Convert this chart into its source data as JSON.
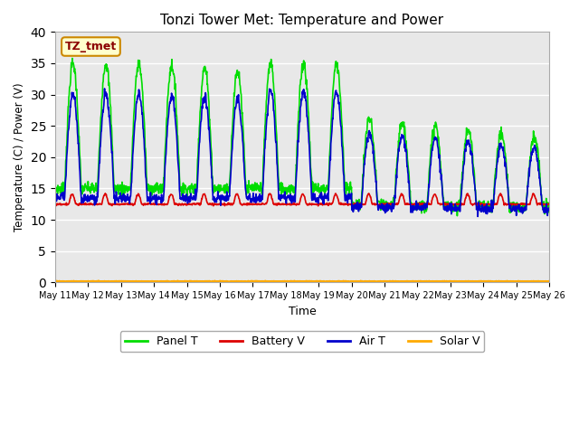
{
  "title": "Tonzi Tower Met: Temperature and Power",
  "xlabel": "Time",
  "ylabel": "Temperature (C) / Power (V)",
  "ylim": [
    0,
    40
  ],
  "yticks": [
    0,
    5,
    10,
    15,
    20,
    25,
    30,
    35,
    40
  ],
  "annotation_text": "TZ_tmet",
  "annotation_color": "#8b0000",
  "annotation_bg": "#ffffcc",
  "annotation_border": "#cc8800",
  "bg_color": "#e8e8e8",
  "panel_color": "#00dd00",
  "battery_color": "#dd0000",
  "air_color": "#0000cc",
  "solar_color": "#ffaa00",
  "legend_labels": [
    "Panel T",
    "Battery V",
    "Air T",
    "Solar V"
  ],
  "line_width": 1.2,
  "tick_labels": [
    "May 11",
    "May 12",
    "May 13",
    "May 14",
    "May 15",
    "May 16",
    "May 17",
    "May 18",
    "May 19",
    "May 20",
    "May 21",
    "May 22",
    "May 23",
    "May 24",
    "May 25",
    "May 26"
  ]
}
